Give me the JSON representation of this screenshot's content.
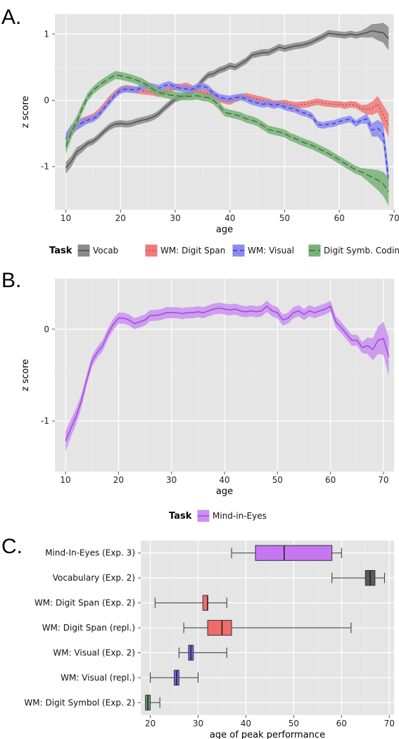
{
  "panels": [
    {
      "letter": "A.",
      "chart_data": {
        "type": "line",
        "xlabel": "age",
        "ylabel": "z score",
        "xlim": [
          8,
          70
        ],
        "ylim": [
          -1.65,
          1.3
        ],
        "xticks": [
          10,
          20,
          30,
          40,
          50,
          60,
          70
        ],
        "yticks": [
          -1,
          0,
          1
        ],
        "grid": true,
        "legend_title": "Task",
        "legend_position": "bottom",
        "series": [
          {
            "name": "Vocab",
            "color": "#4a4a4a",
            "band": "#8a8a8a",
            "dash": "solid",
            "x": [
              10,
              11,
              12,
              13,
              14,
              15,
              16,
              17,
              18,
              19,
              20,
              21,
              22,
              23,
              24,
              25,
              26,
              27,
              28,
              29,
              30,
              31,
              32,
              33,
              34,
              35,
              36,
              37,
              38,
              39,
              40,
              41,
              42,
              43,
              44,
              45,
              46,
              47,
              48,
              49,
              50,
              51,
              52,
              53,
              54,
              55,
              56,
              57,
              58,
              59,
              60,
              61,
              62,
              63,
              64,
              65,
              66,
              67,
              68,
              69
            ],
            "y": [
              -1.02,
              -0.92,
              -0.78,
              -0.72,
              -0.65,
              -0.62,
              -0.55,
              -0.47,
              -0.4,
              -0.36,
              -0.35,
              -0.36,
              -0.35,
              -0.32,
              -0.3,
              -0.28,
              -0.25,
              -0.2,
              -0.12,
              -0.05,
              0.02,
              0.05,
              0.08,
              0.12,
              0.2,
              0.3,
              0.38,
              0.4,
              0.45,
              0.48,
              0.52,
              0.5,
              0.55,
              0.6,
              0.68,
              0.7,
              0.72,
              0.72,
              0.76,
              0.8,
              0.78,
              0.8,
              0.82,
              0.83,
              0.85,
              0.88,
              0.92,
              0.96,
              1.01,
              1.0,
              0.99,
              0.98,
              1.0,
              0.98,
              1.0,
              1.02,
              1.05,
              1.03,
              1.02,
              0.93
            ],
            "err": 0.05
          },
          {
            "name": "WM: Digit Span",
            "color": "#d13a3a",
            "band": "#f07a7a",
            "dash": "dot",
            "x": [
              10,
              11,
              12,
              13,
              14,
              15,
              16,
              17,
              18,
              19,
              20,
              21,
              22,
              23,
              24,
              25,
              26,
              27,
              28,
              29,
              30,
              31,
              32,
              33,
              34,
              35,
              36,
              37,
              38,
              39,
              40,
              41,
              42,
              43,
              44,
              45,
              46,
              47,
              48,
              49,
              50,
              51,
              52,
              53,
              54,
              55,
              56,
              57,
              58,
              59,
              60,
              61,
              62,
              63,
              64,
              65,
              66,
              67,
              68,
              69
            ],
            "y": [
              -0.6,
              -0.45,
              -0.38,
              -0.32,
              -0.28,
              -0.25,
              -0.18,
              -0.08,
              0.02,
              0.1,
              0.16,
              0.18,
              0.17,
              0.15,
              0.14,
              0.13,
              0.12,
              0.1,
              0.12,
              0.16,
              0.2,
              0.2,
              0.22,
              0.18,
              0.15,
              0.12,
              0.1,
              0.08,
              0.02,
              0.0,
              -0.02,
              0.02,
              0.05,
              0.06,
              0.04,
              0.02,
              0.0,
              -0.02,
              -0.05,
              -0.05,
              -0.04,
              -0.06,
              -0.08,
              -0.07,
              -0.06,
              -0.04,
              -0.02,
              -0.04,
              -0.05,
              -0.06,
              -0.06,
              -0.08,
              -0.06,
              -0.07,
              -0.12,
              -0.14,
              -0.12,
              -0.06,
              -0.22,
              -0.38
            ],
            "err": 0.05
          },
          {
            "name": "WM: Visual",
            "color": "#3b3bd8",
            "band": "#8a8af0",
            "dash": "dash",
            "x": [
              10,
              11,
              12,
              13,
              14,
              15,
              16,
              17,
              18,
              19,
              20,
              21,
              22,
              23,
              24,
              25,
              26,
              27,
              28,
              29,
              30,
              31,
              32,
              33,
              34,
              35,
              36,
              37,
              38,
              39,
              40,
              41,
              42,
              43,
              44,
              45,
              46,
              47,
              48,
              49,
              50,
              51,
              52,
              53,
              54,
              55,
              56,
              57,
              58,
              59,
              60,
              61,
              62,
              63,
              64,
              65,
              66,
              67,
              68,
              69
            ],
            "y": [
              -0.58,
              -0.45,
              -0.38,
              -0.34,
              -0.3,
              -0.28,
              -0.22,
              -0.12,
              -0.02,
              0.08,
              0.15,
              0.17,
              0.16,
              0.16,
              0.2,
              0.22,
              0.2,
              0.18,
              0.22,
              0.24,
              0.2,
              0.18,
              0.17,
              0.16,
              0.2,
              0.22,
              0.18,
              0.1,
              0.05,
              0.03,
              0.02,
              0.04,
              0.05,
              0.02,
              -0.02,
              -0.04,
              -0.06,
              -0.05,
              -0.08,
              -0.06,
              -0.1,
              -0.12,
              -0.14,
              -0.18,
              -0.2,
              -0.24,
              -0.36,
              -0.38,
              -0.36,
              -0.35,
              -0.32,
              -0.3,
              -0.28,
              -0.35,
              -0.3,
              -0.28,
              -0.45,
              -0.42,
              -0.5,
              -1.2
            ],
            "err": 0.05
          },
          {
            "name": "Digit Symb. Coding",
            "color": "#2f7a2f",
            "band": "#79b079",
            "dash": "longdash",
            "x": [
              10,
              11,
              12,
              13,
              14,
              15,
              16,
              17,
              18,
              19,
              20,
              21,
              22,
              23,
              24,
              25,
              26,
              27,
              28,
              29,
              30,
              31,
              32,
              33,
              34,
              35,
              36,
              37,
              38,
              39,
              40,
              41,
              42,
              43,
              44,
              45,
              46,
              47,
              48,
              49,
              50,
              51,
              52,
              53,
              54,
              55,
              56,
              57,
              58,
              59,
              60,
              61,
              62,
              63,
              64,
              65,
              66,
              67,
              68,
              69
            ],
            "y": [
              -0.7,
              -0.48,
              -0.32,
              -0.12,
              0.05,
              0.15,
              0.22,
              0.28,
              0.33,
              0.38,
              0.37,
              0.35,
              0.33,
              0.3,
              0.27,
              0.22,
              0.16,
              0.12,
              0.1,
              0.08,
              0.07,
              0.06,
              0.06,
              0.06,
              0.07,
              0.05,
              0.04,
              0.0,
              -0.08,
              -0.18,
              -0.2,
              -0.22,
              -0.24,
              -0.28,
              -0.3,
              -0.33,
              -0.38,
              -0.44,
              -0.46,
              -0.48,
              -0.5,
              -0.55,
              -0.58,
              -0.62,
              -0.65,
              -0.68,
              -0.72,
              -0.76,
              -0.8,
              -0.85,
              -0.9,
              -0.95,
              -1.0,
              -1.05,
              -1.08,
              -1.12,
              -1.16,
              -1.2,
              -1.26,
              -1.38
            ],
            "err": 0.06
          }
        ]
      }
    },
    {
      "letter": "B.",
      "chart_data": {
        "type": "line",
        "xlabel": "age",
        "ylabel": "z score",
        "xlim": [
          8,
          72
        ],
        "ylim": [
          -1.55,
          0.55
        ],
        "xticks": [
          10,
          20,
          30,
          40,
          50,
          60,
          70
        ],
        "yticks": [
          -1,
          0
        ],
        "grid": true,
        "legend_title": "Task",
        "legend_position": "bottom",
        "series": [
          {
            "name": "Mind-in-Eyes",
            "color": "#a23ee0",
            "band": "#c990f0",
            "dash": "solid",
            "x": [
              10,
              11,
              12,
              13,
              14,
              15,
              16,
              17,
              18,
              19,
              20,
              21,
              22,
              23,
              24,
              25,
              26,
              27,
              28,
              29,
              30,
              31,
              32,
              33,
              34,
              35,
              36,
              37,
              38,
              39,
              40,
              41,
              42,
              43,
              44,
              45,
              46,
              47,
              48,
              49,
              50,
              51,
              52,
              53,
              54,
              55,
              56,
              57,
              58,
              59,
              60,
              61,
              62,
              63,
              64,
              65,
              66,
              67,
              68,
              69,
              70,
              71
            ],
            "y": [
              -1.22,
              -1.08,
              -0.95,
              -0.78,
              -0.55,
              -0.35,
              -0.25,
              -0.18,
              -0.05,
              0.05,
              0.12,
              0.12,
              0.1,
              0.06,
              0.08,
              0.1,
              0.15,
              0.15,
              0.16,
              0.18,
              0.18,
              0.18,
              0.17,
              0.18,
              0.18,
              0.19,
              0.18,
              0.2,
              0.22,
              0.23,
              0.22,
              0.21,
              0.22,
              0.2,
              0.19,
              0.2,
              0.19,
              0.2,
              0.25,
              0.2,
              0.18,
              0.1,
              0.12,
              0.18,
              0.2,
              0.16,
              0.2,
              0.18,
              0.2,
              0.22,
              0.25,
              0.08,
              0.02,
              -0.05,
              -0.12,
              -0.12,
              -0.2,
              -0.18,
              -0.22,
              -0.12,
              -0.1,
              -0.3
            ],
            "err": 0.06
          }
        ]
      }
    },
    {
      "letter": "C.",
      "chart_data": {
        "type": "box",
        "xlabel": "age of peak performance",
        "xlim": [
          18,
          71
        ],
        "xticks": [
          20,
          30,
          40,
          50,
          60,
          70
        ],
        "grid": true,
        "boxes": [
          {
            "label": "Mind-In-Eyes (Exp. 3)",
            "color": "#c477f0",
            "min": 37,
            "q1": 42,
            "median": 48,
            "q3": 58,
            "max": 60
          },
          {
            "label": "Vocabulary (Exp. 2)",
            "color": "#5a5a5a",
            "min": 58,
            "q1": 65,
            "median": 66,
            "q3": 67,
            "max": 69
          },
          {
            "label": "WM: Digit Span (Exp. 2)",
            "color": "#f26b6b",
            "min": 21,
            "q1": 31,
            "median": 32,
            "q3": 32,
            "max": 36
          },
          {
            "label": "WM: Digit Span (repl.)",
            "color": "#f26b6b",
            "min": 27,
            "q1": 32,
            "median": 35,
            "q3": 37,
            "max": 62
          },
          {
            "label": "WM: Visual (Exp. 2)",
            "color": "#6a6af0",
            "min": 26,
            "q1": 28,
            "median": 28.5,
            "q3": 29,
            "max": 36
          },
          {
            "label": "WM: Visual (repl.)",
            "color": "#6a6af0",
            "min": 20,
            "q1": 25,
            "median": 25.5,
            "q3": 26,
            "max": 30
          },
          {
            "label": "WM: Digit Symbol (Exp. 2)",
            "color": "#6f9e6f",
            "min": 19,
            "q1": 19,
            "median": 19.5,
            "q3": 20,
            "max": 22
          }
        ]
      }
    }
  ]
}
